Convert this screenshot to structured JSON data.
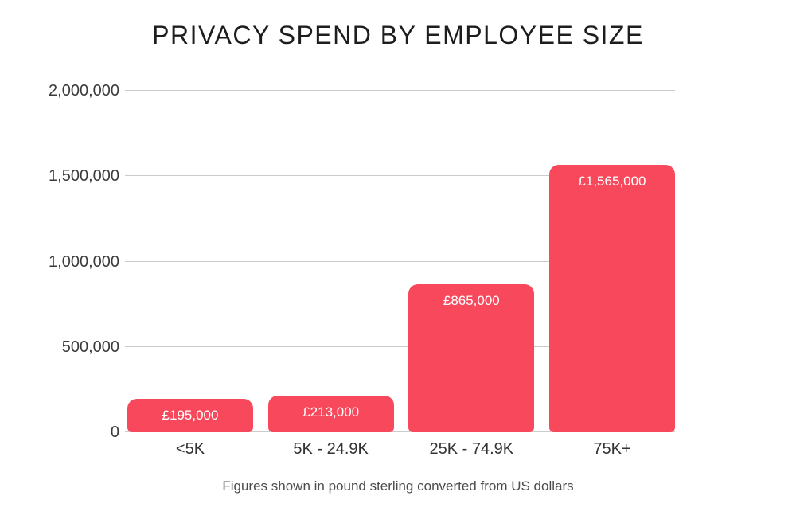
{
  "chart_data": {
    "type": "bar",
    "title": "PRIVACY SPEND BY EMPLOYEE SIZE",
    "footnote": "Figures shown in pound sterling converted from US dollars",
    "categories": [
      "<5K",
      "5K - 24.9K",
      "25K - 74.9K",
      "75K+"
    ],
    "values": [
      195000,
      213000,
      865000,
      1565000
    ],
    "bar_labels": [
      "£195,000",
      "£213,000",
      "£865,000",
      "£1,565,000"
    ],
    "y_ticks": [
      0,
      500000,
      1000000,
      1500000,
      2000000
    ],
    "y_tick_labels": [
      "0",
      "500,000",
      "1,000,000",
      "1,500,000",
      "2,000,000"
    ],
    "ylim": [
      0,
      2000000
    ],
    "grid": true,
    "legend": false,
    "xlabel": "",
    "ylabel": "",
    "bar_color": "#f8495c",
    "bar_label_color": "#ffffff",
    "gridline_color": "#cbcbcb"
  }
}
